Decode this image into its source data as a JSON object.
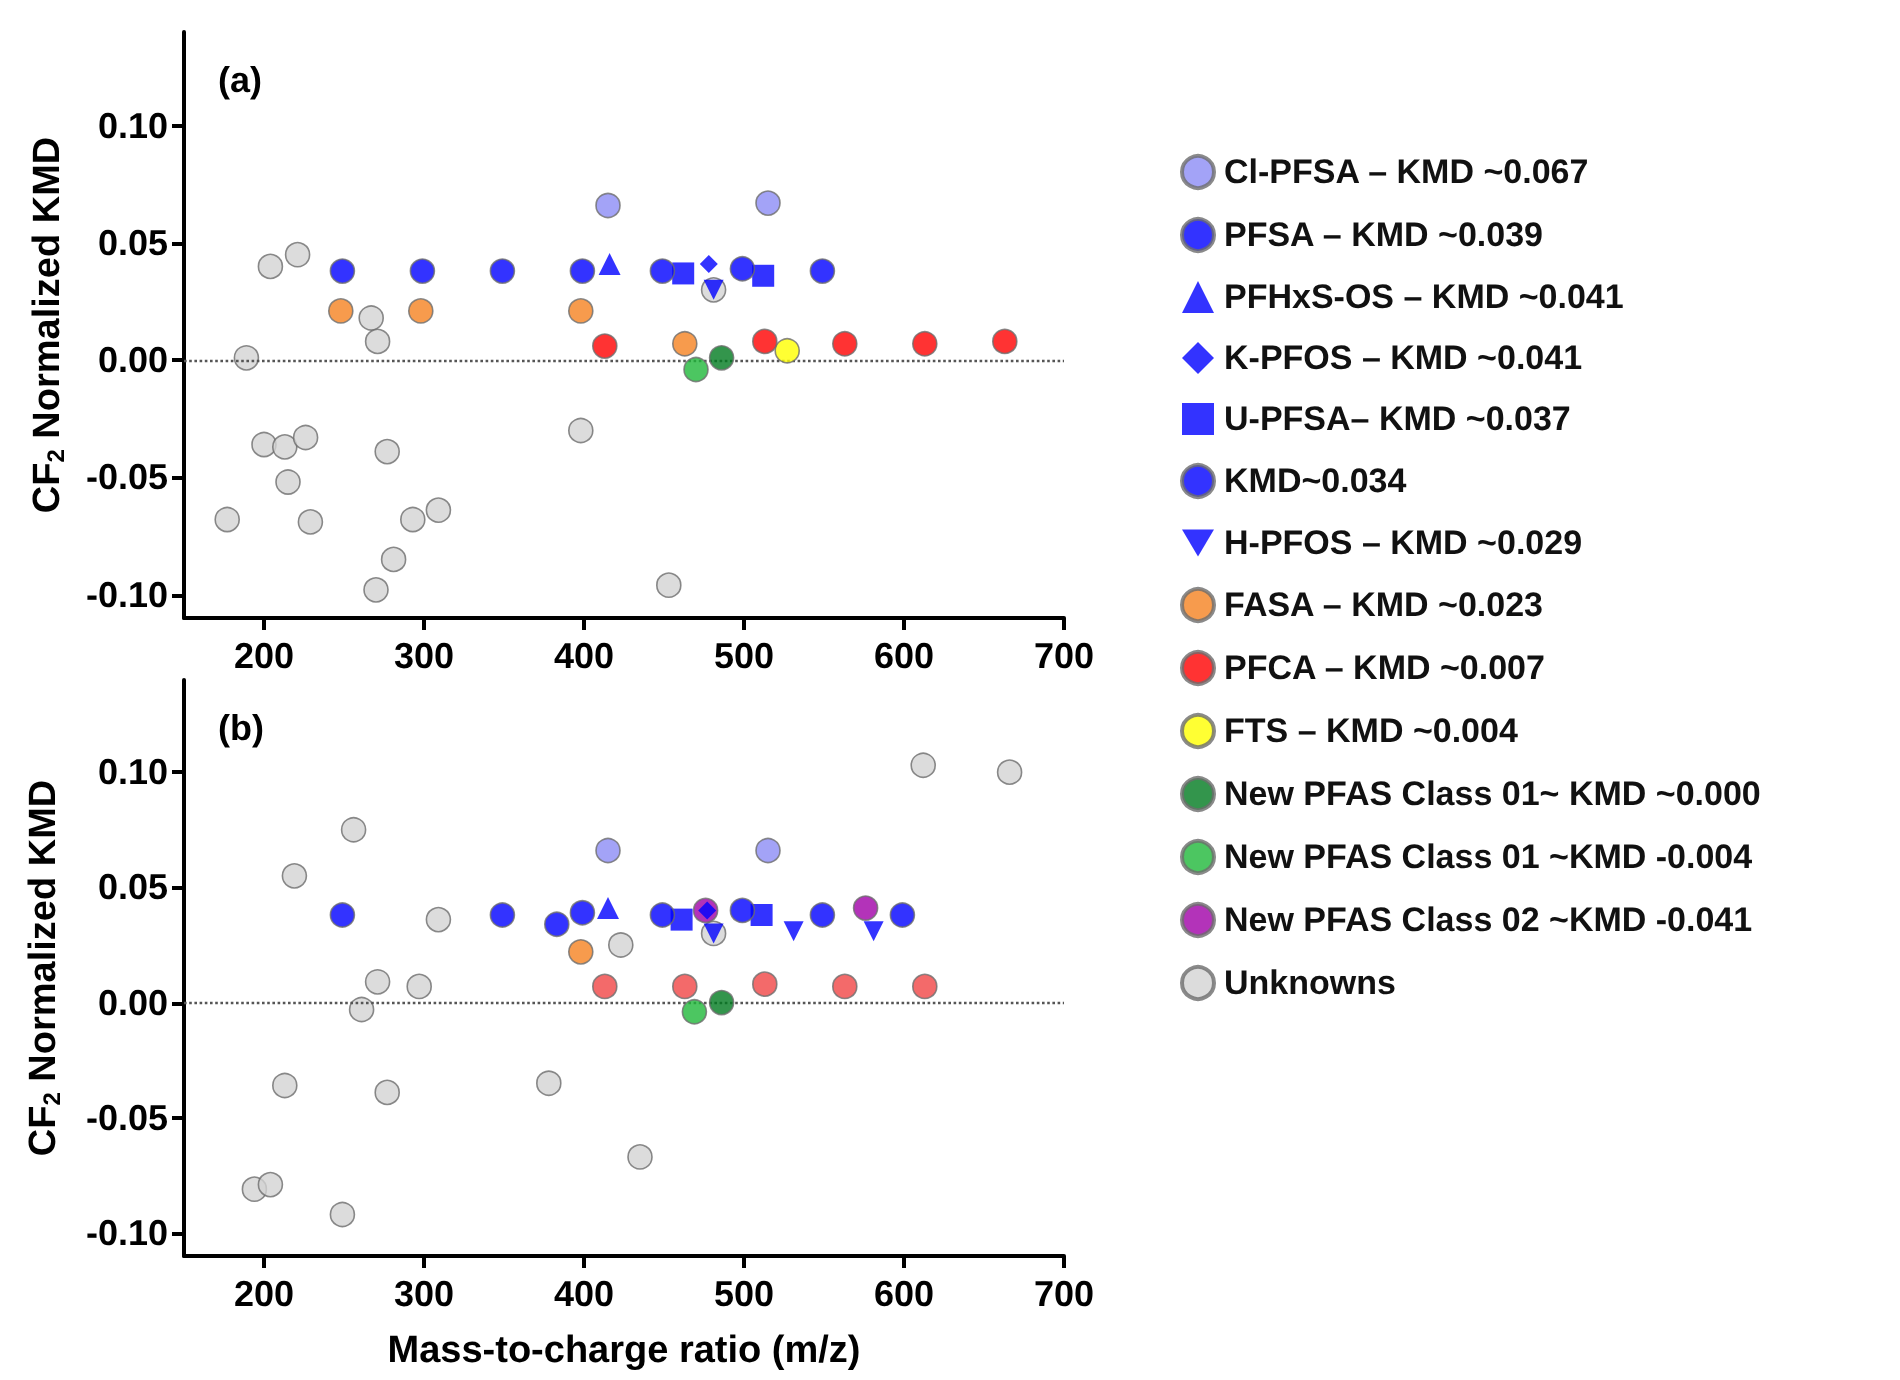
{
  "chart_data": [
    {
      "type": "scatter",
      "title": "(a)",
      "ylabel": "CF$_{2}$ Normalized KMD",
      "xlim": [
        150,
        700
      ],
      "xticks": [
        200,
        300,
        400,
        500,
        600,
        700
      ],
      "ylim": [
        -0.11,
        0.14
      ],
      "yticks": [
        {
          "value": -0.1,
          "label": "-0.10"
        },
        {
          "value": -0.05,
          "label": "-0.05"
        },
        {
          "value": 0,
          "label": "0.00"
        },
        {
          "value": 0.05,
          "label": "0.05"
        },
        {
          "value": 0.1,
          "label": "0.10"
        }
      ],
      "grid": false,
      "legend": "right",
      "ref_lines": [
        {
          "axis": "y",
          "value": 0,
          "color": "#555555",
          "line_style": "dotted"
        }
      ],
      "series": [
        {
          "name": "Cl-PFSA – KMD ~0.067",
          "color": "#8c8cf5",
          "marker": "circle",
          "x": [
            415,
            515
          ],
          "values": [
            0.066,
            0.067
          ]
        },
        {
          "name": "PFSA – KMD ~0.039",
          "color": "#0000ff",
          "marker": "circle",
          "x": [
            249,
            299,
            349,
            399,
            449,
            499,
            549
          ],
          "values": [
            0.038,
            0.038,
            0.038,
            0.038,
            0.038,
            0.039,
            0.038
          ]
        },
        {
          "name": "PFHxS-OS – KMD ~0.041",
          "color": "#0000ff",
          "marker": "triangle",
          "x": [
            416
          ],
          "values": [
            0.041
          ]
        },
        {
          "name": "K-PFOS – KMD ~0.041",
          "color": "#0000ff",
          "marker": "diamond",
          "x": [
            478
          ],
          "values": [
            0.041
          ]
        },
        {
          "name": "U-PFSA– KMD ~0.037",
          "color": "#0000ff",
          "marker": "square",
          "x": [
            462,
            512
          ],
          "values": [
            0.037,
            0.036
          ]
        },
        {
          "name": "KMD~0.034",
          "color": "#0000ff",
          "marker": "circle"
        },
        {
          "name": "H-PFOS – KMD ~0.029",
          "color": "#0000ff",
          "marker": "triangle-down",
          "x": [
            481
          ],
          "values": [
            0.03
          ]
        },
        {
          "name": "FASA – KMD ~0.023",
          "color": "#f58220",
          "marker": "circle",
          "x": [
            248,
            298,
            398,
            463
          ],
          "values": [
            0.021,
            0.021,
            0.021,
            0.007
          ]
        },
        {
          "name": "PFCA – KMD ~0.007",
          "color": "#ff0000",
          "marker": "circle",
          "x": [
            413,
            513,
            563,
            613,
            663
          ],
          "values": [
            0.006,
            0.008,
            0.007,
            0.007,
            0.008
          ]
        },
        {
          "name": "FTS – KMD ~0.004",
          "color": "#ffff00",
          "marker": "circle",
          "x": [
            527
          ],
          "values": [
            0.004
          ]
        },
        {
          "name": "New PFAS Class 01~ KMD ~0.000",
          "color": "#007a1f",
          "marker": "circle",
          "x": [
            486
          ],
          "values": [
            0.001
          ]
        },
        {
          "name": "New PFAS Class 01 ~KMD -0.004",
          "color": "#1fb83a",
          "marker": "circle",
          "x": [
            470
          ],
          "values": [
            -0.004
          ]
        },
        {
          "name": "New PFAS Class 02 ~KMD -0.041",
          "color": "#a000a8",
          "marker": "circle"
        },
        {
          "name": "Unknowns",
          "color": "#d3d3d3",
          "marker": "circle",
          "x": [
            204,
            221,
            189,
            267,
            271,
            200,
            213,
            226,
            215,
            177,
            229,
            277,
            293,
            309,
            281,
            270,
            398,
            453,
            481
          ],
          "values": [
            0.04,
            0.045,
            0.001,
            0.018,
            0.008,
            -0.036,
            -0.037,
            -0.033,
            -0.052,
            -0.068,
            -0.069,
            -0.039,
            -0.068,
            -0.064,
            -0.085,
            -0.098,
            -0.03,
            -0.096,
            0.03
          ]
        }
      ]
    },
    {
      "type": "scatter",
      "title": "(b)",
      "xlabel": "Mass-to-charge ratio (m/z)",
      "ylabel": "CF$_{2}$ Normalized KMD",
      "xlim": [
        150,
        700
      ],
      "xticks": [
        200,
        300,
        400,
        500,
        600,
        700
      ],
      "ylim": [
        -0.11,
        0.14
      ],
      "yticks": [
        {
          "value": -0.1,
          "label": "-0.10"
        },
        {
          "value": -0.05,
          "label": "-0.05"
        },
        {
          "value": 0,
          "label": "0.00"
        },
        {
          "value": 0.05,
          "label": "0.05"
        },
        {
          "value": 0.1,
          "label": "0.10"
        }
      ],
      "grid": false,
      "ref_lines": [
        {
          "axis": "y",
          "value": 0,
          "color": "#555555",
          "line_style": "dotted"
        }
      ],
      "series": [
        {
          "color": "#8c8cf5",
          "marker": "circle",
          "x": [
            415,
            515
          ],
          "values": [
            0.066,
            0.066
          ]
        },
        {
          "color": "#0000ff",
          "marker": "circle",
          "x": [
            249,
            349,
            399,
            449,
            499,
            549,
            599
          ],
          "values": [
            0.038,
            0.038,
            0.039,
            0.038,
            0.04,
            0.038,
            0.038
          ]
        },
        {
          "color": "#0000ff",
          "marker": "triangle",
          "x": [
            415
          ],
          "values": [
            0.041
          ]
        },
        {
          "color": "#0000ff",
          "marker": "diamond",
          "x": [
            477
          ],
          "values": [
            0.04
          ]
        },
        {
          "color": "#0000ff",
          "marker": "square",
          "x": [
            461,
            511
          ],
          "values": [
            0.036,
            0.038
          ]
        },
        {
          "color": "#0000ff",
          "marker": "circle",
          "x": [
            383
          ],
          "values": [
            0.034
          ]
        },
        {
          "color": "#0000ff",
          "marker": "triangle-down",
          "x": [
            481,
            531,
            581
          ],
          "values": [
            0.03,
            0.031,
            0.031
          ]
        },
        {
          "color": "#f58220",
          "marker": "circle",
          "x": [
            398
          ],
          "values": [
            0.022
          ]
        },
        {
          "color": "#f04545",
          "marker": "circle",
          "x": [
            413,
            463,
            513,
            563,
            613
          ],
          "values": [
            0.007,
            0.007,
            0.008,
            0.007,
            0.007
          ]
        },
        {
          "color": "#007a1f",
          "marker": "circle",
          "x": [
            486
          ],
          "values": [
            0.0
          ]
        },
        {
          "color": "#1fb83a",
          "marker": "circle",
          "x": [
            469
          ],
          "values": [
            -0.004
          ]
        },
        {
          "color": "#a000a8",
          "marker": "circle",
          "x": [
            476,
            576
          ],
          "values": [
            0.04,
            0.041
          ]
        },
        {
          "color": "#d3d3d3",
          "marker": "circle",
          "x": [
            256,
            219,
            309,
            423,
            271,
            297,
            261,
            213,
            277,
            378,
            435,
            194,
            204,
            249,
            612,
            666,
            481
          ],
          "values": [
            0.075,
            0.055,
            0.036,
            0.025,
            0.009,
            0.007,
            -0.003,
            -0.036,
            -0.039,
            -0.035,
            -0.067,
            -0.081,
            -0.079,
            -0.092,
            0.103,
            0.1,
            0.03
          ]
        }
      ]
    }
  ]
}
